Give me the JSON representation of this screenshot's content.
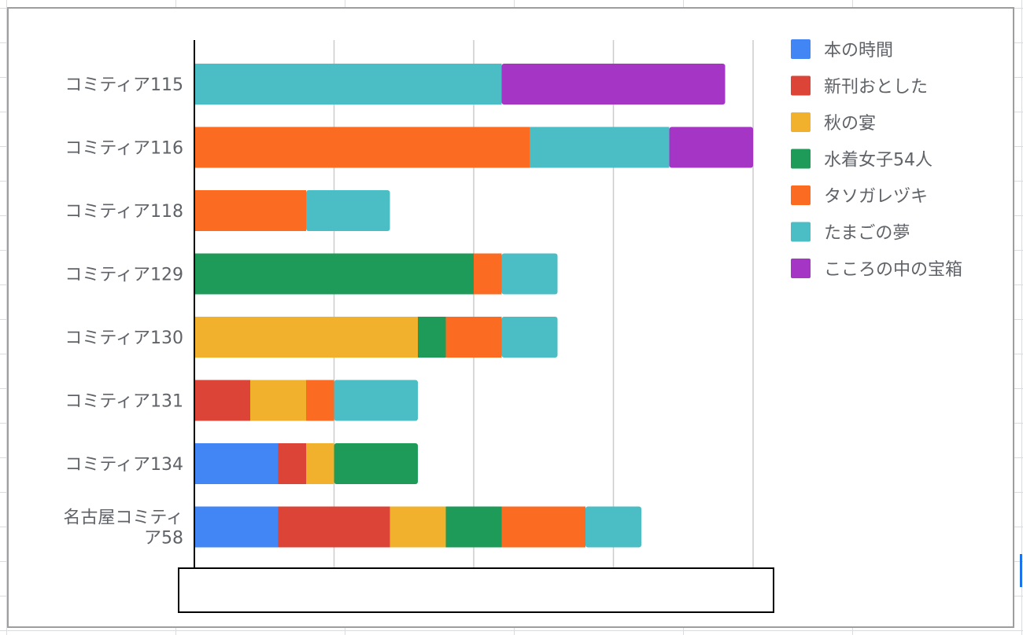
{
  "chart_data": {
    "type": "bar",
    "orientation": "horizontal",
    "stacked": true,
    "categories": [
      "コミティア115",
      "コミティア116",
      "コミティア118",
      "コミティア129",
      "コミティア130",
      "コミティア131",
      "コミティア134",
      "名古屋コミティア58"
    ],
    "category_label_lines": [
      [
        "コミティア115"
      ],
      [
        "コミティア116"
      ],
      [
        "コミティア118"
      ],
      [
        "コミティア129"
      ],
      [
        "コミティア130"
      ],
      [
        "コミティア131"
      ],
      [
        "コミティア134"
      ],
      [
        "名古屋コミティ",
        "ア58"
      ]
    ],
    "series": [
      {
        "name": "本の時間",
        "color": "#4285f4",
        "values": [
          0,
          0,
          0,
          0,
          0,
          0,
          3,
          3
        ]
      },
      {
        "name": "新刊おとした",
        "color": "#db4437",
        "values": [
          0,
          0,
          0,
          0,
          0,
          2,
          1,
          4
        ]
      },
      {
        "name": "秋の宴",
        "color": "#f2b12c",
        "values": [
          0,
          0,
          0,
          0,
          8,
          2,
          1,
          2
        ]
      },
      {
        "name": "水着女子54人",
        "color": "#1e9b59",
        "values": [
          0,
          0,
          0,
          10,
          1,
          0,
          3,
          2
        ]
      },
      {
        "name": "タソガレヅキ",
        "color": "#fb6b21",
        "values": [
          0,
          12,
          4,
          1,
          2,
          1,
          0,
          3
        ]
      },
      {
        "name": "たまごの夢",
        "color": "#4bbdc5",
        "values": [
          11,
          5,
          3,
          2,
          2,
          3,
          0,
          2
        ]
      },
      {
        "name": "こころの中の宝箱",
        "color": "#a535c4",
        "values": [
          8,
          3,
          0,
          0,
          0,
          0,
          0,
          0
        ]
      }
    ],
    "xlim": [
      0,
      20
    ],
    "grid": true,
    "legend": "right"
  },
  "colors": {
    "axis": "#000000",
    "grid": "#cccccc",
    "label": "#5f6368"
  }
}
